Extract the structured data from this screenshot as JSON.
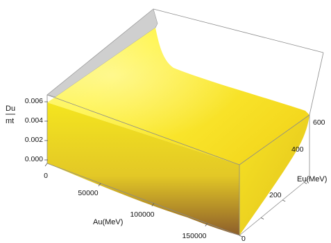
{
  "chart_data": {
    "type": "surface3d",
    "title": "",
    "zlabel": {
      "numerator": "Du",
      "denominator": "mt"
    },
    "xlabel": "Au(MeV)",
    "ylabel": "Eu(MeV)",
    "x_ticks": [
      "0",
      "50000",
      "100000",
      "150000"
    ],
    "y_ticks": [
      "0",
      "200",
      "400",
      "600"
    ],
    "z_ticks": [
      "0.000",
      "0.002",
      "0.004",
      "0.006"
    ],
    "xlim": [
      0,
      180000
    ],
    "ylim": [
      0,
      650
    ],
    "zlim": [
      0,
      0.0065
    ],
    "colors": {
      "surface_top": "#fff02a",
      "surface_side": "#f2e020",
      "surface_shadow": "#9a6a2a",
      "cap_gray": "#cfcfcf",
      "box": "#8a8a8a"
    }
  }
}
